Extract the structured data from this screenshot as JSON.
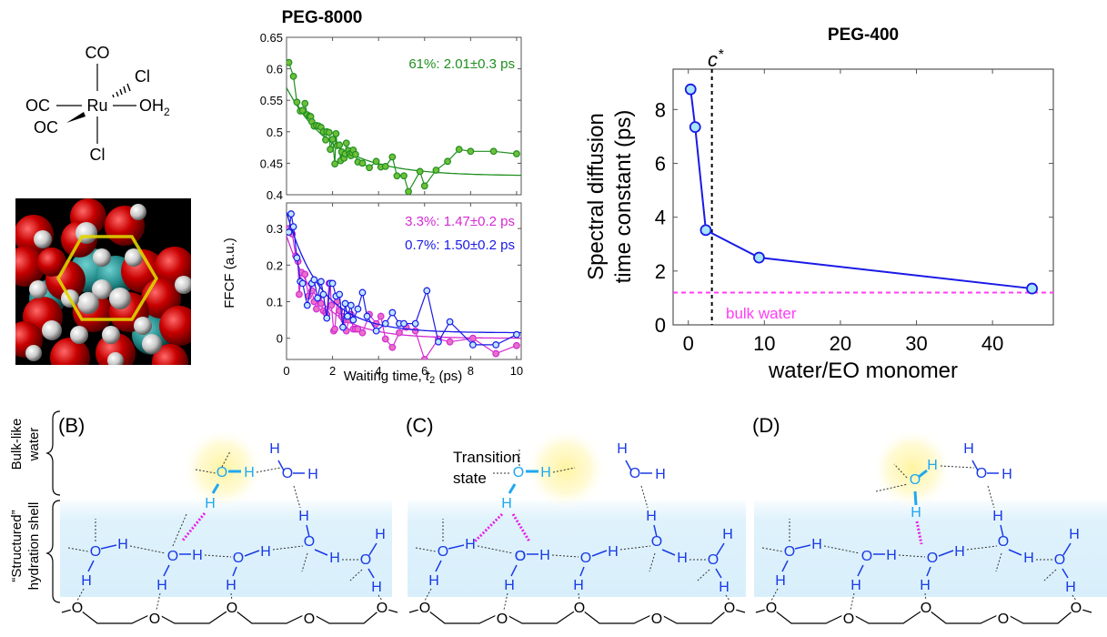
{
  "complex": {
    "center": "Ru",
    "ligands": {
      "top": "CO",
      "upper_right": "Cl",
      "left": "OC",
      "right": "OH",
      "right_subscript": "2",
      "lower_left": "OC",
      "bottom": "Cl"
    }
  },
  "chart_data": [
    {
      "type": "line",
      "title": "PEG-8000",
      "xlabel": "Waiting time, t2 (ps)",
      "xlabel_parts": {
        "pre": "Waiting time, ",
        "italic": "t",
        "sub": "2",
        "post": " (ps)"
      },
      "ylabel": "FFCF (a.u.)",
      "grid": false,
      "panels": [
        {
          "name": "top",
          "ylim": [
            0.4,
            0.65
          ],
          "xlim": [
            0,
            10.2
          ],
          "yticks": [
            "0.4",
            "0.45",
            "0.5",
            "0.55",
            "0.6",
            "0.65"
          ],
          "ytick_values": [
            0.4,
            0.45,
            0.5,
            0.55,
            0.6,
            0.65
          ],
          "xticks": [
            0,
            2,
            4,
            6,
            8,
            10
          ],
          "series": [
            {
              "name": "61%",
              "label": "61%: 2.01±0.3 ps",
              "color": "#1f8f1f",
              "x": [
                0.1,
                0.3,
                0.45,
                0.6,
                0.7,
                0.8,
                0.9,
                1.0,
                1.05,
                1.1,
                1.2,
                1.3,
                1.4,
                1.5,
                1.6,
                1.7,
                1.75,
                1.85,
                1.9,
                2.0,
                2.1,
                2.15,
                2.2,
                2.3,
                2.35,
                2.4,
                2.5,
                2.55,
                2.6,
                2.7,
                2.75,
                2.8,
                2.85,
                2.9,
                3.0,
                3.1,
                3.3,
                3.6,
                3.9,
                4.1,
                4.3,
                4.6,
                4.8,
                5.1,
                5.3,
                5.8,
                6.0,
                6.5,
                7.0,
                7.5,
                8.0,
                9.0,
                10.0
              ],
              "y": [
                0.61,
                0.588,
                0.547,
                0.533,
                0.534,
                0.545,
                0.527,
                0.525,
                0.524,
                0.516,
                0.509,
                0.51,
                0.509,
                0.507,
                0.5,
                0.487,
                0.5,
                0.499,
                0.472,
                0.488,
                0.449,
                0.497,
                0.478,
                0.479,
                0.454,
                0.468,
                0.458,
                0.465,
                0.482,
                0.47,
                0.465,
                0.462,
                0.467,
                0.471,
                0.464,
                0.452,
                0.45,
                0.443,
                0.453,
                0.444,
                0.445,
                0.46,
                0.43,
                0.43,
                0.405,
                0.437,
                0.414,
                0.439,
                0.453,
                0.472,
                0.469,
                0.469,
                0.465
              ],
              "fit": {
                "amplitude": 0.14,
                "tau": 2.01,
                "offset": 0.43
              }
            }
          ]
        },
        {
          "name": "bottom",
          "ylim": [
            -0.058,
            0.37
          ],
          "xlim": [
            0,
            10.2
          ],
          "yticks": [
            "0",
            "0.1",
            "0.2",
            "0.3"
          ],
          "ytick_values": [
            0,
            0.1,
            0.2,
            0.3
          ],
          "xticks": [
            "0",
            "2",
            "4",
            "6",
            "8",
            "10"
          ],
          "xtick_values": [
            0,
            2,
            4,
            6,
            8,
            10
          ],
          "series": [
            {
              "name": "3.3%",
              "label": "3.3%: 1.47±0.2 ps",
              "color": "#d42ad4",
              "fill": "#e870c8",
              "x": [
                0.1,
                0.25,
                0.4,
                0.5,
                0.55,
                0.65,
                0.8,
                0.95,
                1.1,
                1.2,
                1.3,
                1.4,
                1.5,
                1.6,
                1.7,
                1.75,
                1.85,
                1.9,
                1.95,
                2.05,
                2.1,
                2.2,
                2.3,
                2.4,
                2.5,
                2.6,
                2.7,
                2.8,
                2.9,
                3.0,
                3.1,
                3.3,
                3.6,
                3.9,
                4.1,
                4.3,
                4.6,
                4.9,
                5.2,
                5.6,
                6.0,
                6.6,
                7.1,
                8.1,
                9.1,
                10.0
              ],
              "y": [
                0.3,
                0.285,
                0.225,
                0.21,
                0.12,
                0.18,
                0.175,
                0.115,
                0.13,
                0.1,
                0.08,
                0.11,
                0.095,
                0.075,
                0.07,
                0.065,
                0.15,
                0.15,
                0.09,
                0.02,
                0.025,
                0.1,
                0.075,
                0.06,
                0.05,
                0.02,
                0.05,
                0.065,
                0.025,
                0.025,
                0.025,
                0.015,
                0.065,
                0.04,
                0.06,
                -0.002,
                -0.025,
                0.015,
                0.03,
                0.02,
                -0.058,
                -0.002,
                -0.01,
                0.0,
                -0.042,
                -0.02
              ],
              "fit": {
                "amplitude": 0.28,
                "tau": 1.47,
                "offset": 0.0
              }
            },
            {
              "name": "0.7%",
              "label": "0.7%: 1.50±0.2 ps",
              "color": "#1a1ae6",
              "fill": "#bfe6ff",
              "x": [
                0.1,
                0.2,
                0.3,
                0.45,
                0.6,
                0.7,
                0.9,
                1.1,
                1.2,
                1.35,
                1.5,
                1.6,
                1.75,
                1.9,
                2.0,
                2.15,
                2.3,
                2.45,
                2.55,
                2.65,
                2.8,
                2.9,
                3.1,
                3.3,
                3.5,
                3.9,
                4.3,
                4.6,
                4.9,
                5.1,
                5.6,
                6.1,
                6.6,
                7.1,
                8.1,
                9.1,
                10.0
              ],
              "y": [
                0.29,
                0.34,
                0.305,
                0.22,
                0.155,
                0.15,
                0.09,
                0.15,
                0.16,
                0.11,
                0.155,
                0.12,
                0.055,
                0.15,
                0.15,
                0.115,
                0.12,
                0.03,
                0.095,
                0.06,
                0.09,
                0.05,
                0.08,
                0.125,
                0.06,
                0.02,
                0.04,
                0.07,
                0.04,
                0.04,
                0.04,
                0.13,
                -0.01,
                0.045,
                -0.018,
                -0.018,
                0.01
              ],
              "fit": {
                "amplitude": 0.33,
                "tau": 1.5,
                "offset": 0.015
              }
            }
          ]
        }
      ]
    },
    {
      "type": "line",
      "title": "PEG-400",
      "xlabel": "water/EO monomer",
      "ylabel": "Spectral diffusion time constant (ps)",
      "ylabel_lines": [
        "Spectral diffusion",
        "time constant (ps)"
      ],
      "xlim": [
        -2.0,
        48.0
      ],
      "ylim": [
        0,
        9.5
      ],
      "xticks": [
        "0",
        "10",
        "20",
        "30",
        "40"
      ],
      "xtick_values": [
        0,
        10,
        20,
        30,
        40
      ],
      "yticks": [
        "0",
        "2",
        "4",
        "6",
        "8"
      ],
      "ytick_values": [
        0,
        2,
        4,
        6,
        8
      ],
      "grid": false,
      "series": [
        {
          "name": "spectral diffusion",
          "color": "#1a1ae6",
          "marker_fill": "#a8e4fa",
          "x": [
            0.3,
            0.9,
            2.3,
            9.3,
            45.2
          ],
          "y": [
            8.75,
            7.35,
            3.52,
            2.5,
            1.35
          ]
        }
      ],
      "annotations": {
        "c_star": {
          "label": "c*",
          "label_italic": "c",
          "label_sup": "*",
          "x": 3.1
        },
        "bulk_water": {
          "label": "bulk water",
          "y": 1.2,
          "color": "#ff3df5"
        }
      }
    }
  ],
  "diagram": {
    "side_labels": {
      "bulk": [
        "Bulk-like",
        "water"
      ],
      "structured": [
        "“Structured”",
        "hydration shell"
      ]
    },
    "panels": [
      {
        "id": "B",
        "label": "(B)"
      },
      {
        "id": "C",
        "label": "(C)",
        "caption": [
          "Transition",
          "state"
        ]
      },
      {
        "id": "D",
        "label": "(D)"
      }
    ],
    "atom_O": "O",
    "atom_H": "H",
    "colors": {
      "water": "#1a3ae6",
      "highlight": "#1fa8f0",
      "hbond_new": "#e81ee8",
      "shell": "#dff2fc",
      "glow": "#fff6a8"
    }
  }
}
